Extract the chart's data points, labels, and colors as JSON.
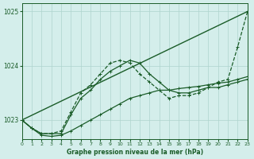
{
  "bg_color": "#d4eeeb",
  "grid_color": "#aed4ce",
  "line_color": "#1a5c28",
  "title": "Graphe pression niveau de la mer (hPa)",
  "xlim": [
    0,
    23
  ],
  "ylim": [
    1022.65,
    1025.15
  ],
  "yticks": [
    1023,
    1024,
    1025
  ],
  "xticks": [
    0,
    1,
    2,
    3,
    4,
    5,
    6,
    7,
    8,
    9,
    10,
    11,
    12,
    13,
    14,
    15,
    16,
    17,
    18,
    19,
    20,
    21,
    22,
    23
  ],
  "series_straight": {
    "x": [
      0,
      23
    ],
    "y": [
      1023.0,
      1025.0
    ]
  },
  "series_peak": {
    "x": [
      0,
      1,
      2,
      3,
      4,
      5,
      6,
      7,
      8,
      9,
      10,
      11,
      12,
      13,
      14,
      15,
      16,
      17,
      18,
      19,
      20,
      21,
      22,
      23
    ],
    "y": [
      1023.0,
      1022.85,
      1022.75,
      1022.75,
      1022.75,
      1023.1,
      1023.4,
      1023.55,
      1023.75,
      1023.9,
      1024.0,
      1024.1,
      1024.05,
      1023.85,
      1023.7,
      1023.55,
      1023.5,
      1023.5,
      1023.55,
      1023.6,
      1023.6,
      1023.65,
      1023.7,
      1023.75
    ]
  },
  "series_jagged": {
    "x": [
      0,
      1,
      2,
      3,
      4,
      5,
      6,
      7,
      8,
      9,
      10,
      11,
      12,
      13,
      14,
      15,
      16,
      17,
      18,
      19,
      20,
      21,
      22,
      23
    ],
    "y": [
      1023.0,
      1022.85,
      1022.75,
      1022.75,
      1022.8,
      1023.15,
      1023.5,
      1023.65,
      1023.85,
      1024.05,
      1024.1,
      1024.05,
      1023.85,
      1023.7,
      1023.55,
      1023.4,
      1023.45,
      1023.45,
      1023.5,
      1023.6,
      1023.7,
      1023.75,
      1024.35,
      1025.0
    ]
  },
  "series_low": {
    "x": [
      0,
      1,
      2,
      3,
      4,
      5,
      6,
      7,
      8,
      9,
      10,
      11,
      12,
      13,
      14,
      15,
      16,
      17,
      18,
      19,
      20,
      21,
      22,
      23
    ],
    "y": [
      1023.0,
      1022.85,
      1022.72,
      1022.7,
      1022.72,
      1022.8,
      1022.9,
      1023.0,
      1023.1,
      1023.2,
      1023.3,
      1023.4,
      1023.45,
      1023.5,
      1023.55,
      1023.55,
      1023.58,
      1023.6,
      1023.62,
      1023.65,
      1023.68,
      1023.7,
      1023.75,
      1023.8
    ]
  }
}
